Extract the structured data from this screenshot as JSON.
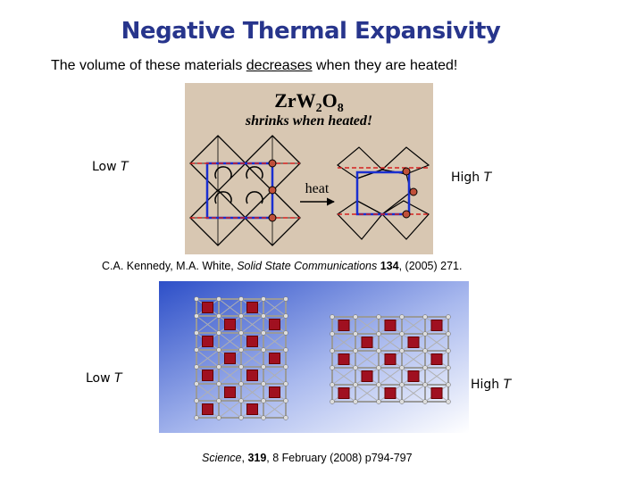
{
  "title": "Negative Thermal Expansivity",
  "intro": {
    "before": "The volume of these materials ",
    "emphasis": "decreases",
    "after": " when they are heated!"
  },
  "figure1": {
    "formula": {
      "el1": "Zr",
      "el2": "W",
      "sub2": "2",
      "el3": "O",
      "sub3": "8"
    },
    "caption": "shrinks when heated!",
    "arrow_label": "heat",
    "left_label": {
      "text": "Low ",
      "variable": "T"
    },
    "right_label": {
      "text": "High ",
      "variable": "T"
    }
  },
  "citation1": {
    "authors": "C.A. Kennedy, M.A. White, ",
    "journal": "Solid State Communications",
    "space": " ",
    "volume": "134",
    "rest": ", (2005) 271."
  },
  "figure2": {
    "left_label": {
      "text": "Low ",
      "variable": "T"
    },
    "right_label": {
      "text": "High ",
      "variable": "T"
    }
  },
  "citation2": {
    "journal": "Science",
    "sep": ", ",
    "volume": "319",
    "rest": ", 8 February (2008) p794-797"
  }
}
